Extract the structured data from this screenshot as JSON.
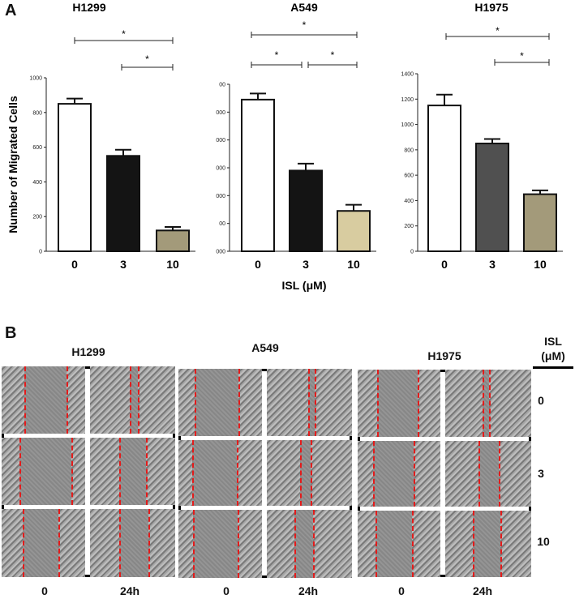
{
  "panel_a_label": "A",
  "panel_b_label": "B",
  "chart_data": [
    {
      "type": "bar",
      "title": "H1299",
      "ylabel": "Number of Migrated Cells",
      "xlabel": "",
      "categories": [
        "0",
        "3",
        "10"
      ],
      "values": [
        850,
        550,
        120
      ],
      "errors": [
        30,
        35,
        20
      ],
      "bar_colors": [
        "#ffffff",
        "#141414",
        "#a39a7a"
      ],
      "yticks": [
        "0",
        "200",
        "400",
        "600",
        "800",
        "1000"
      ],
      "ylim": [
        0,
        1000
      ],
      "significance": [
        "*",
        "*"
      ]
    },
    {
      "type": "bar",
      "title": "A549",
      "ylabel": "",
      "xlabel": "ISL (μM)",
      "categories": [
        "0",
        "3",
        "10"
      ],
      "values": [
        545,
        290,
        145
      ],
      "errors": [
        22,
        25,
        22
      ],
      "bar_colors": [
        "#ffffff",
        "#141414",
        "#d8cca0"
      ],
      "yticks": [
        "000",
        "00",
        "000",
        "000",
        "000",
        "000",
        "00"
      ],
      "ylim": [
        0,
        600
      ],
      "significance": [
        "*",
        "*",
        "*"
      ]
    },
    {
      "type": "bar",
      "title": "H1975",
      "ylabel": "",
      "xlabel": "",
      "categories": [
        "0",
        "3",
        "10"
      ],
      "values": [
        1150,
        850,
        450
      ],
      "errors": [
        85,
        35,
        30
      ],
      "bar_colors": [
        "#ffffff",
        "#505050",
        "#a39a7a"
      ],
      "yticks": [
        "0",
        "200",
        "400",
        "600",
        "800",
        "1000",
        "1200",
        "1400"
      ],
      "ylim": [
        0,
        1400
      ],
      "significance": [
        "*",
        "*"
      ]
    }
  ],
  "panel_b": {
    "cell_lines": [
      {
        "name": "H1299"
      },
      {
        "name": "A549"
      },
      {
        "name": "H1975"
      }
    ],
    "time_labels": [
      "0",
      "24h"
    ],
    "isl_header": "ISL\n(μM)",
    "isl_header_line1": "ISL",
    "isl_header_line2": "(μM)",
    "doses": [
      "0",
      "3",
      "10"
    ]
  }
}
